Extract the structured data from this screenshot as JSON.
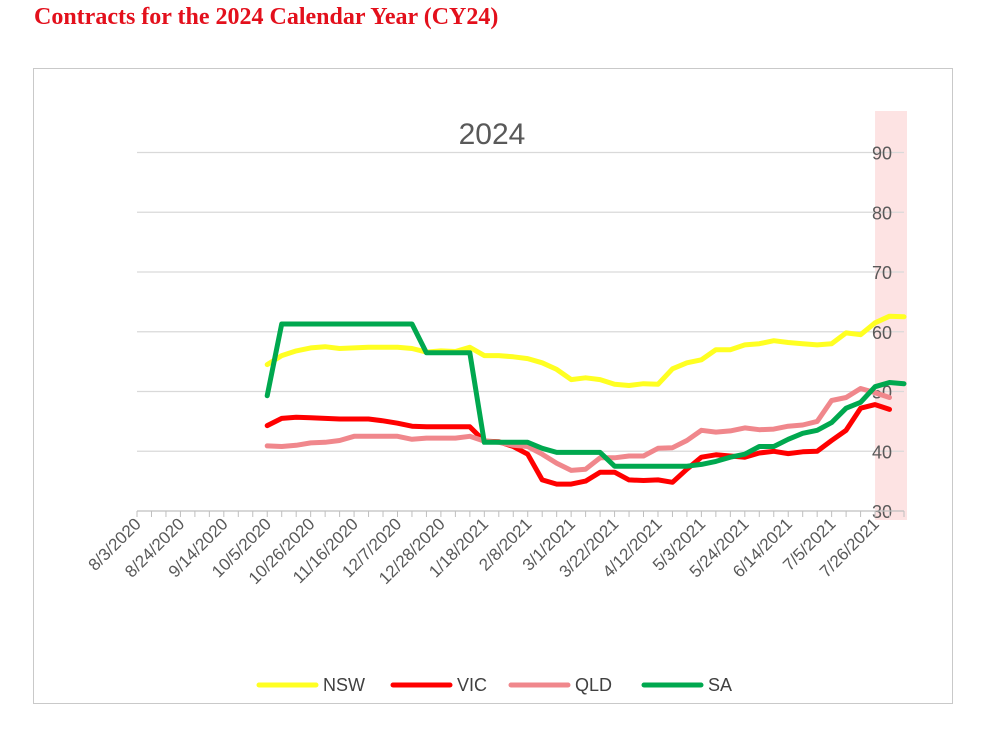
{
  "page": {
    "heading": "Contracts for the 2024 Calendar Year (CY24)"
  },
  "chart_data": {
    "type": "line",
    "title": "2024",
    "xlabel": "",
    "ylabel": "",
    "ylim": [
      30,
      95
    ],
    "yticks": [
      30,
      40,
      50,
      60,
      70,
      80,
      90
    ],
    "y_axis_side": "right",
    "grid": true,
    "legend": "bottom",
    "x_range": [
      "2020-08-03",
      "2021-08-09"
    ],
    "x_ticks": [
      "8/3/2020",
      "8/24/2020",
      "9/14/2020",
      "10/5/2020",
      "10/26/2020",
      "11/16/2020",
      "12/7/2020",
      "12/28/2020",
      "1/18/2021",
      "2/8/2021",
      "3/1/2021",
      "3/22/2021",
      "4/12/2021",
      "5/3/2021",
      "5/24/2021",
      "6/14/2021",
      "7/5/2021",
      "7/26/2021"
    ],
    "highlight_band": {
      "from": "2021-07-26",
      "to": "2021-08-09",
      "color": "#fde3e3"
    },
    "series": [
      {
        "name": "NSW",
        "color": "#ffff22",
        "points": [
          [
            "2020-10-05",
            54.5
          ],
          [
            "2020-10-12",
            56.0
          ],
          [
            "2020-10-19",
            56.8
          ],
          [
            "2020-10-26",
            57.3
          ],
          [
            "2020-11-02",
            57.5
          ],
          [
            "2020-11-09",
            57.2
          ],
          [
            "2020-11-16",
            57.3
          ],
          [
            "2020-11-23",
            57.4
          ],
          [
            "2020-11-30",
            57.4
          ],
          [
            "2020-12-07",
            57.4
          ],
          [
            "2020-12-14",
            57.2
          ],
          [
            "2020-12-21",
            56.6
          ],
          [
            "2020-12-28",
            56.8
          ],
          [
            "2021-01-04",
            56.7
          ],
          [
            "2021-01-11",
            57.4
          ],
          [
            "2021-01-18",
            56.0
          ],
          [
            "2021-01-25",
            56.0
          ],
          [
            "2021-02-01",
            55.8
          ],
          [
            "2021-02-08",
            55.5
          ],
          [
            "2021-02-15",
            54.8
          ],
          [
            "2021-02-22",
            53.7
          ],
          [
            "2021-03-01",
            52.0
          ],
          [
            "2021-03-08",
            52.3
          ],
          [
            "2021-03-15",
            52.0
          ],
          [
            "2021-03-22",
            51.2
          ],
          [
            "2021-03-29",
            51.0
          ],
          [
            "2021-04-05",
            51.3
          ],
          [
            "2021-04-12",
            51.2
          ],
          [
            "2021-04-19",
            53.8
          ],
          [
            "2021-04-26",
            54.8
          ],
          [
            "2021-05-03",
            55.3
          ],
          [
            "2021-05-10",
            57.0
          ],
          [
            "2021-05-17",
            57.0
          ],
          [
            "2021-05-24",
            57.8
          ],
          [
            "2021-05-31",
            58.0
          ],
          [
            "2021-06-07",
            58.5
          ],
          [
            "2021-06-14",
            58.2
          ],
          [
            "2021-06-21",
            58.0
          ],
          [
            "2021-06-28",
            57.8
          ],
          [
            "2021-07-05",
            58.0
          ],
          [
            "2021-07-12",
            59.8
          ],
          [
            "2021-07-19",
            59.5
          ],
          [
            "2021-07-26",
            61.5
          ],
          [
            "2021-08-02",
            62.6
          ],
          [
            "2021-08-09",
            62.5
          ]
        ]
      },
      {
        "name": "VIC",
        "color": "#ff0000",
        "points": [
          [
            "2020-10-05",
            44.3
          ],
          [
            "2020-10-12",
            45.5
          ],
          [
            "2020-10-19",
            45.7
          ],
          [
            "2020-10-26",
            45.6
          ],
          [
            "2020-11-02",
            45.5
          ],
          [
            "2020-11-09",
            45.4
          ],
          [
            "2020-11-16",
            45.4
          ],
          [
            "2020-11-23",
            45.4
          ],
          [
            "2020-11-30",
            45.1
          ],
          [
            "2020-12-07",
            44.7
          ],
          [
            "2020-12-14",
            44.2
          ],
          [
            "2020-12-21",
            44.1
          ],
          [
            "2020-12-28",
            44.1
          ],
          [
            "2021-01-04",
            44.1
          ],
          [
            "2021-01-11",
            44.1
          ],
          [
            "2021-01-18",
            41.7
          ],
          [
            "2021-01-25",
            41.6
          ],
          [
            "2021-02-01",
            40.8
          ],
          [
            "2021-02-08",
            39.5
          ],
          [
            "2021-02-15",
            35.2
          ],
          [
            "2021-02-22",
            34.5
          ],
          [
            "2021-03-01",
            34.5
          ],
          [
            "2021-03-08",
            35.0
          ],
          [
            "2021-03-15",
            36.5
          ],
          [
            "2021-03-22",
            36.5
          ],
          [
            "2021-03-29",
            35.2
          ],
          [
            "2021-04-05",
            35.1
          ],
          [
            "2021-04-12",
            35.2
          ],
          [
            "2021-04-19",
            34.8
          ],
          [
            "2021-04-26",
            37.0
          ],
          [
            "2021-05-03",
            39.0
          ],
          [
            "2021-05-10",
            39.4
          ],
          [
            "2021-05-17",
            39.2
          ],
          [
            "2021-05-24",
            39.0
          ],
          [
            "2021-05-31",
            39.7
          ],
          [
            "2021-06-07",
            40.0
          ],
          [
            "2021-06-14",
            39.6
          ],
          [
            "2021-06-21",
            39.9
          ],
          [
            "2021-06-28",
            40.0
          ],
          [
            "2021-07-05",
            41.8
          ],
          [
            "2021-07-12",
            43.5
          ],
          [
            "2021-07-19",
            47.2
          ],
          [
            "2021-07-26",
            47.8
          ],
          [
            "2021-08-02",
            47.0
          ]
        ]
      },
      {
        "name": "QLD",
        "color": "#f0878c",
        "points": [
          [
            "2020-10-05",
            40.9
          ],
          [
            "2020-10-12",
            40.8
          ],
          [
            "2020-10-19",
            41.0
          ],
          [
            "2020-10-26",
            41.4
          ],
          [
            "2020-11-02",
            41.5
          ],
          [
            "2020-11-09",
            41.8
          ],
          [
            "2020-11-16",
            42.5
          ],
          [
            "2020-11-23",
            42.5
          ],
          [
            "2020-11-30",
            42.5
          ],
          [
            "2020-12-07",
            42.5
          ],
          [
            "2020-12-14",
            42.0
          ],
          [
            "2020-12-21",
            42.2
          ],
          [
            "2020-12-28",
            42.2
          ],
          [
            "2021-01-04",
            42.2
          ],
          [
            "2021-01-11",
            42.5
          ],
          [
            "2021-01-18",
            41.7
          ],
          [
            "2021-01-25",
            41.5
          ],
          [
            "2021-02-01",
            41.0
          ],
          [
            "2021-02-08",
            40.8
          ],
          [
            "2021-02-15",
            39.5
          ],
          [
            "2021-02-22",
            38.0
          ],
          [
            "2021-03-01",
            36.8
          ],
          [
            "2021-03-08",
            37.0
          ],
          [
            "2021-03-15",
            38.9
          ],
          [
            "2021-03-22",
            38.9
          ],
          [
            "2021-03-29",
            39.2
          ],
          [
            "2021-04-05",
            39.2
          ],
          [
            "2021-04-12",
            40.5
          ],
          [
            "2021-04-19",
            40.6
          ],
          [
            "2021-04-26",
            41.8
          ],
          [
            "2021-05-03",
            43.5
          ],
          [
            "2021-05-10",
            43.2
          ],
          [
            "2021-05-17",
            43.4
          ],
          [
            "2021-05-24",
            43.9
          ],
          [
            "2021-05-31",
            43.6
          ],
          [
            "2021-06-07",
            43.7
          ],
          [
            "2021-06-14",
            44.2
          ],
          [
            "2021-06-21",
            44.4
          ],
          [
            "2021-06-28",
            45.0
          ],
          [
            "2021-07-05",
            48.5
          ],
          [
            "2021-07-12",
            49.0
          ],
          [
            "2021-07-19",
            50.5
          ],
          [
            "2021-07-26",
            49.8
          ],
          [
            "2021-08-02",
            49.0
          ]
        ]
      },
      {
        "name": "SA",
        "color": "#00a84f",
        "points": [
          [
            "2020-10-05",
            49.3
          ],
          [
            "2020-10-12",
            61.3
          ],
          [
            "2020-10-19",
            61.3
          ],
          [
            "2020-10-26",
            61.3
          ],
          [
            "2020-11-02",
            61.3
          ],
          [
            "2020-11-09",
            61.3
          ],
          [
            "2020-11-16",
            61.3
          ],
          [
            "2020-11-23",
            61.3
          ],
          [
            "2020-11-30",
            61.3
          ],
          [
            "2020-12-07",
            61.3
          ],
          [
            "2020-12-14",
            61.3
          ],
          [
            "2020-12-21",
            56.5
          ],
          [
            "2020-12-28",
            56.5
          ],
          [
            "2021-01-04",
            56.5
          ],
          [
            "2021-01-11",
            56.5
          ],
          [
            "2021-01-18",
            41.5
          ],
          [
            "2021-01-25",
            41.5
          ],
          [
            "2021-02-01",
            41.5
          ],
          [
            "2021-02-08",
            41.5
          ],
          [
            "2021-02-15",
            40.5
          ],
          [
            "2021-02-22",
            39.8
          ],
          [
            "2021-03-01",
            39.8
          ],
          [
            "2021-03-08",
            39.8
          ],
          [
            "2021-03-15",
            39.8
          ],
          [
            "2021-03-22",
            37.5
          ],
          [
            "2021-03-29",
            37.5
          ],
          [
            "2021-04-05",
            37.5
          ],
          [
            "2021-04-12",
            37.5
          ],
          [
            "2021-04-19",
            37.5
          ],
          [
            "2021-04-26",
            37.5
          ],
          [
            "2021-05-03",
            37.8
          ],
          [
            "2021-05-10",
            38.3
          ],
          [
            "2021-05-17",
            39.0
          ],
          [
            "2021-05-24",
            39.5
          ],
          [
            "2021-05-31",
            40.8
          ],
          [
            "2021-06-07",
            40.8
          ],
          [
            "2021-06-14",
            42.0
          ],
          [
            "2021-06-21",
            43.0
          ],
          [
            "2021-06-28",
            43.5
          ],
          [
            "2021-07-05",
            44.8
          ],
          [
            "2021-07-12",
            47.2
          ],
          [
            "2021-07-19",
            48.2
          ],
          [
            "2021-07-26",
            50.8
          ],
          [
            "2021-08-02",
            51.5
          ],
          [
            "2021-08-09",
            51.3
          ]
        ]
      }
    ]
  }
}
